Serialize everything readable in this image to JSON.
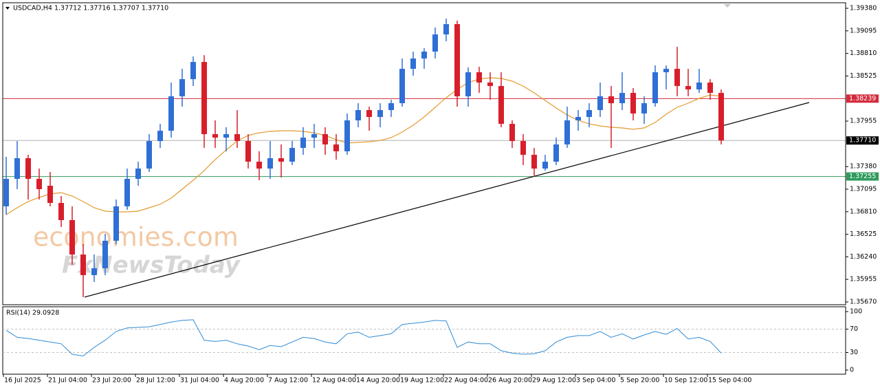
{
  "header": "USDCAD,H4  1.37712 1.37716 1.37707 1.37710",
  "watermark": [
    "economies.com",
    "FxNewsToday"
  ],
  "chart_data": [
    {
      "type": "candlestick",
      "x": [
        1,
        5,
        9,
        13,
        17,
        21,
        25,
        29,
        33,
        37,
        41,
        45,
        49,
        53,
        57,
        61,
        65,
        69,
        73,
        77,
        81,
        85,
        89,
        93,
        97,
        101,
        105,
        109,
        113,
        117,
        121,
        125,
        129,
        133,
        137,
        141,
        145,
        149,
        153,
        157,
        161,
        165,
        169,
        173,
        177,
        181,
        185,
        189,
        193,
        197,
        201,
        205,
        209,
        213,
        217,
        221,
        225,
        229,
        233,
        237,
        241,
        245,
        249,
        253,
        257,
        261
      ],
      "open": [
        1.36878,
        1.37225,
        1.37486,
        1.37225,
        1.37138,
        1.36921,
        1.36704,
        1.36269,
        1.36009,
        1.36096,
        1.36443,
        1.36878,
        1.37225,
        1.37355,
        1.37703,
        1.37833,
        1.38268,
        1.38485,
        1.38702,
        1.3779,
        1.37746,
        1.3779,
        1.37703,
        1.37442,
        1.37355,
        1.37486,
        1.37442,
        1.37616,
        1.37746,
        1.3779,
        1.3766,
        1.37573,
        1.37964,
        1.38094,
        1.38007,
        1.38094,
        1.38181,
        1.38615,
        1.38746,
        1.38833,
        1.3905,
        1.3918,
        1.38268,
        1.38572,
        1.38442,
        1.38398,
        1.3792,
        1.37703,
        1.37529,
        1.37355,
        1.37442,
        1.3766,
        1.37964,
        1.38007,
        1.38094,
        1.38268,
        1.38181,
        1.38311,
        1.38051,
        1.38181,
        1.38572,
        1.38615,
        1.38398,
        1.38355,
        1.38442,
        1.38311
      ],
      "high": [
        1.37503,
        1.37703,
        1.37529,
        1.37355,
        1.37312,
        1.37008,
        1.36878,
        1.364,
        1.36269,
        1.3653,
        1.36964,
        1.37355,
        1.37442,
        1.3779,
        1.3792,
        1.38442,
        1.38615,
        1.38772,
        1.38789,
        1.37964,
        1.37877,
        1.38094,
        1.3779,
        1.37573,
        1.37703,
        1.3766,
        1.37703,
        1.37877,
        1.3792,
        1.37877,
        1.3779,
        1.38051,
        1.38181,
        1.38137,
        1.38181,
        1.38224,
        1.38746,
        1.38833,
        1.38876,
        1.39137,
        1.3925,
        1.39224,
        1.38633,
        1.38641,
        1.38572,
        1.38572,
        1.37964,
        1.3779,
        1.37616,
        1.37529,
        1.37746,
        1.38137,
        1.38094,
        1.38181,
        1.38442,
        1.38398,
        1.38572,
        1.38372,
        1.38268,
        1.38659,
        1.38659,
        1.38893,
        1.38615,
        1.38615,
        1.38485,
        1.38355
      ],
      "low": [
        1.36773,
        1.37095,
        1.36964,
        1.36964,
        1.36878,
        1.36617,
        1.36139,
        1.35731,
        1.35922,
        1.36009,
        1.364,
        1.36834,
        1.37138,
        1.37312,
        1.37616,
        1.37746,
        1.38137,
        1.38398,
        1.37616,
        1.37616,
        1.37573,
        1.37616,
        1.37355,
        1.37208,
        1.37225,
        1.37242,
        1.37399,
        1.37529,
        1.37616,
        1.37529,
        1.37468,
        1.37529,
        1.37877,
        1.37833,
        1.37877,
        1.38007,
        1.38137,
        1.38528,
        1.38615,
        1.38746,
        1.38963,
        1.38137,
        1.38137,
        1.38311,
        1.38224,
        1.37877,
        1.37616,
        1.37399,
        1.37251,
        1.37329,
        1.37399,
        1.37616,
        1.37833,
        1.37877,
        1.38007,
        1.37616,
        1.38094,
        1.37964,
        1.3792,
        1.38137,
        1.38355,
        1.38268,
        1.38268,
        1.38311,
        1.38224,
        1.3766
      ],
      "close": [
        1.37225,
        1.37486,
        1.37225,
        1.37095,
        1.36921,
        1.36704,
        1.36269,
        1.36009,
        1.36096,
        1.36443,
        1.36878,
        1.37225,
        1.37355,
        1.37703,
        1.37833,
        1.38268,
        1.38485,
        1.38702,
        1.3779,
        1.37746,
        1.3779,
        1.37703,
        1.37442,
        1.37355,
        1.37486,
        1.37442,
        1.37616,
        1.37746,
        1.3779,
        1.3766,
        1.37573,
        1.37964,
        1.38094,
        1.38007,
        1.38094,
        1.38181,
        1.38615,
        1.38746,
        1.38833,
        1.3905,
        1.3918,
        1.38268,
        1.38572,
        1.38442,
        1.38398,
        1.3792,
        1.37703,
        1.37529,
        1.37355,
        1.37442,
        1.3766,
        1.37964,
        1.38007,
        1.38094,
        1.38268,
        1.38181,
        1.38311,
        1.38051,
        1.38181,
        1.38572,
        1.38615,
        1.38398,
        1.38355,
        1.38442,
        1.38311,
        1.3771
      ],
      "up_color": "#2f6fd6",
      "down_color": "#d81e2a",
      "ma": {
        "color": "#e39a2d",
        "values": [
          1.36773,
          1.3686,
          1.36938,
          1.36991,
          1.37034,
          1.37051,
          1.37008,
          1.36938,
          1.3686,
          1.36817,
          1.36808,
          1.36808,
          1.36817,
          1.3686,
          1.36904,
          1.36982,
          1.37095,
          1.37208,
          1.37329,
          1.37468,
          1.3759,
          1.37703,
          1.37773,
          1.37807,
          1.37825,
          1.37833,
          1.37833,
          1.37825,
          1.37807,
          1.37773,
          1.3772,
          1.37677,
          1.37686,
          1.37694,
          1.3771,
          1.37746,
          1.37816,
          1.37903,
          1.38007,
          1.38129,
          1.3825,
          1.38355,
          1.38442,
          1.38485,
          1.38502,
          1.38494,
          1.38459,
          1.38398,
          1.38311,
          1.38216,
          1.3812,
          1.38033,
          1.37964,
          1.3792,
          1.37894,
          1.37877,
          1.37868,
          1.37851,
          1.37868,
          1.37938,
          1.38042,
          1.38129,
          1.38181,
          1.38242,
          1.38285,
          1.38268
        ]
      },
      "hlines": [
        {
          "value": 1.38239,
          "label": "1.38239",
          "color": "#d42a3c"
        },
        {
          "value": 1.3771,
          "label": "1.37710",
          "color": "#000000"
        },
        {
          "value": 1.37255,
          "label": "1.37255",
          "color": "#2e9a5c"
        }
      ],
      "trendline": {
        "x": [
          29.5,
          293
        ],
        "values": [
          1.35731,
          1.3819
        ],
        "color": "#000000"
      },
      "xlim": [
        -0.25,
        306.25
      ],
      "xticks": [
        {
          "value": 0,
          "label": "16 Jul 2025"
        },
        {
          "value": 16,
          "label": "21 Jul 04:00"
        },
        {
          "value": 32,
          "label": "23 Jul 20:00"
        },
        {
          "value": 48,
          "label": "28 Jul 12:00"
        },
        {
          "value": 64,
          "label": "31 Jul 04:00"
        },
        {
          "value": 80,
          "label": "4 Aug 20:00"
        },
        {
          "value": 96,
          "label": "7 Aug 12:00"
        },
        {
          "value": 112,
          "label": "12 Aug 04:00"
        },
        {
          "value": 128,
          "label": "14 Aug 20:00"
        },
        {
          "value": 144,
          "label": "19 Aug 12:00"
        },
        {
          "value": 160,
          "label": "22 Aug 04:00"
        },
        {
          "value": 176,
          "label": "26 Aug 20:00"
        },
        {
          "value": 192,
          "label": "29 Aug 12:00"
        },
        {
          "value": 208,
          "label": "3 Sep 04:00"
        },
        {
          "value": 224,
          "label": "5 Sep 20:00"
        },
        {
          "value": 240,
          "label": "10 Sep 12:00"
        },
        {
          "value": 256,
          "label": "15 Sep 04:00"
        }
      ],
      "ylim": [
        1.35635,
        1.3945
      ],
      "yticks": [
        {
          "value": 1.3938,
          "label": "1.39380"
        },
        {
          "value": 1.39095,
          "label": "1.39095"
        },
        {
          "value": 1.3881,
          "label": "1.38810"
        },
        {
          "value": 1.38525,
          "label": "1.38525"
        },
        {
          "value": 1.37955,
          "label": "1.37955"
        },
        {
          "value": 1.3738,
          "label": "1.37380"
        },
        {
          "value": 1.37095,
          "label": "1.37095"
        },
        {
          "value": 1.3681,
          "label": "1.36810"
        },
        {
          "value": 1.36525,
          "label": "1.36525"
        },
        {
          "value": 1.3624,
          "label": "1.36240"
        },
        {
          "value": 1.35955,
          "label": "1.35955"
        },
        {
          "value": 1.3567,
          "label": "1.35670"
        }
      ]
    },
    {
      "type": "line",
      "title": "RSI(14) 29.0928",
      "color": "#2e8bd6",
      "values": [
        68,
        56,
        54,
        51,
        48,
        45,
        27,
        24,
        39,
        51,
        66,
        72,
        73,
        74,
        78,
        82,
        85,
        86,
        51,
        49,
        51,
        45,
        41,
        35,
        42,
        40,
        48,
        56,
        54,
        48,
        45,
        62,
        65,
        56,
        59,
        62,
        78,
        80,
        82,
        85,
        84,
        39,
        48,
        45,
        45,
        33,
        29,
        27,
        28,
        33,
        48,
        56,
        59,
        59,
        66,
        56,
        62,
        53,
        60,
        66,
        61,
        71,
        53,
        56,
        49,
        29
      ],
      "ylim": [
        0,
        100
      ],
      "yticks": [
        100,
        70,
        30,
        0
      ],
      "levels": [
        70,
        30
      ]
    }
  ]
}
